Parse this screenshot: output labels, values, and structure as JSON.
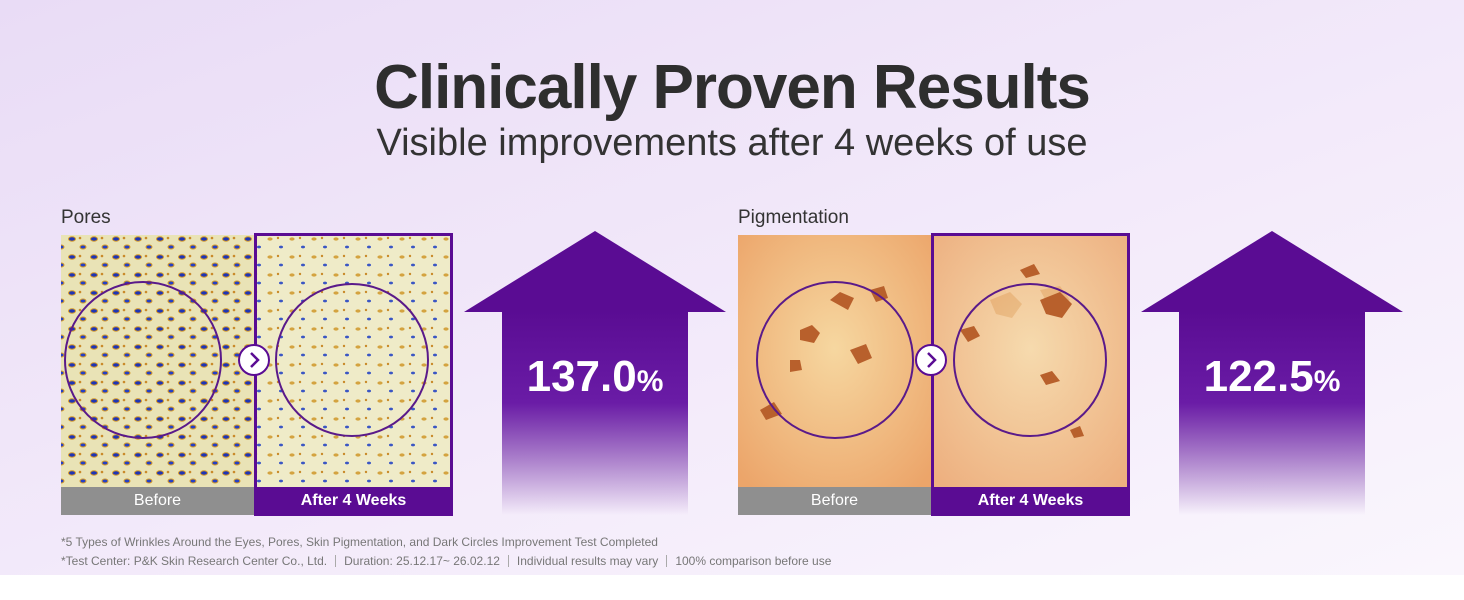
{
  "header": {
    "title": "Clinically Proven Results",
    "subtitle": "Visible improvements after 4 weeks of use"
  },
  "panels": [
    {
      "label": "Pores",
      "before": "Before",
      "after": "After 4 Weeks",
      "value": "137.0",
      "unit": "%"
    },
    {
      "label": "Pigmentation",
      "before": "Before",
      "after": "After 4 Weeks",
      "value": "122.5",
      "unit": "%"
    }
  ],
  "footnotes": {
    "line1": "*5 Types of Wrinkles Around the Eyes, Pores, Skin Pigmentation, and Dark Circles Improvement Test Completed",
    "line2": [
      "*Test Center: P&K Skin Research Center Co., Ltd.",
      "Duration: 25.12.17~ 26.02.12",
      "Individual results may vary",
      "100% comparison before use"
    ]
  }
}
